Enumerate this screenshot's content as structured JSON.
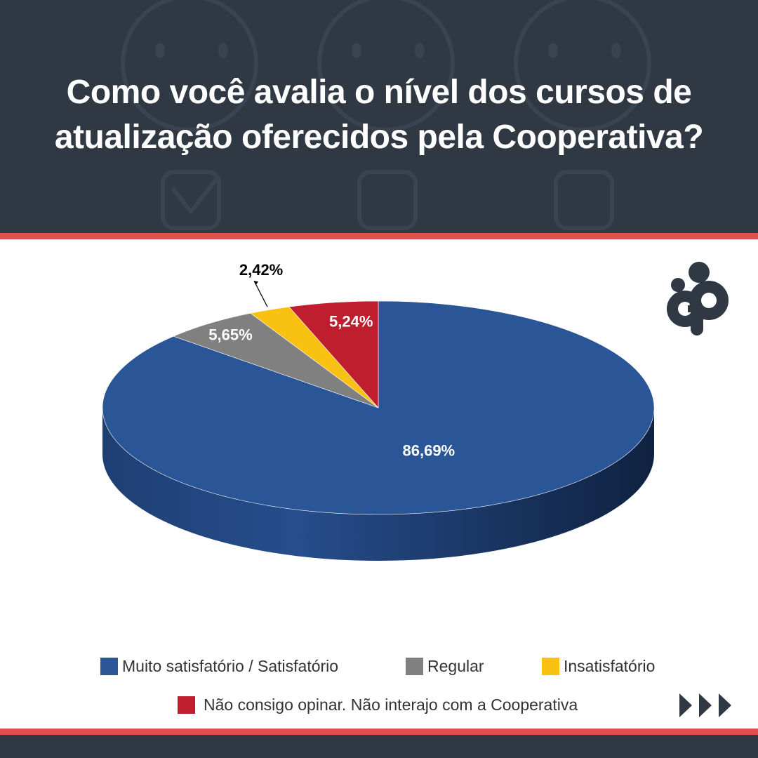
{
  "header": {
    "title": "Como você avalia o nível dos cursos de atualização oferecidos pela Cooperativa?"
  },
  "colors": {
    "header_bg": "#2f3843",
    "accent_stripe": "#e0504e",
    "blue": "#2a5597",
    "gray": "#808080",
    "yellow": "#f9c112",
    "red": "#be1e2d"
  },
  "chart_data": {
    "type": "pie",
    "style": "3d",
    "slices": [
      {
        "label": "Muito satisfatório / Satisfatório",
        "value": 86.69,
        "display": "86,69%",
        "color": "#2a5597"
      },
      {
        "label": "Regular",
        "value": 5.65,
        "display": "5,65%",
        "color": "#808080"
      },
      {
        "label": "Insatisfatório",
        "value": 2.42,
        "display": "2,42%",
        "color": "#f9c112"
      },
      {
        "label": "Não consigo opinar. Não interajo com a Cooperativa",
        "value": 5.24,
        "display": "5,24%",
        "color": "#be1e2d"
      }
    ],
    "legend_position": "bottom"
  },
  "icons": {
    "logo": "cooperative-logo-icon",
    "next": "triple-chevron-right-icon"
  }
}
